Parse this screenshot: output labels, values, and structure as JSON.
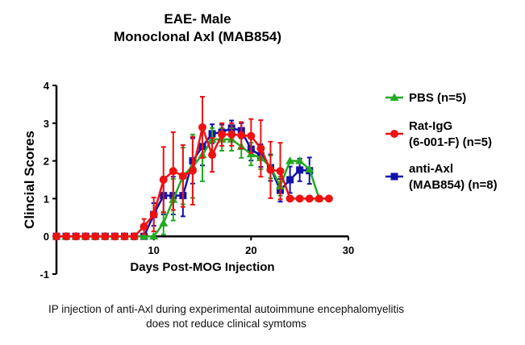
{
  "chart_data": {
    "type": "line",
    "title": "EAE- Male",
    "subtitle": "Monoclonal  Axl  (MAB854)",
    "xlabel": "Days Post-MOG Injection",
    "ylabel": "Clincial  Scores",
    "xlim": [
      0,
      30
    ],
    "ylim": [
      -1,
      4
    ],
    "xticks": [
      10,
      20,
      30
    ],
    "yticks": [
      -1,
      0,
      1,
      2,
      3,
      4
    ],
    "grid": false,
    "legend_position": "right",
    "series": [
      {
        "name": "PBS (n=5)",
        "legend_lines": [
          "PBS (n=5)"
        ],
        "color": "#22aa22",
        "marker": "triangle",
        "x": [
          0,
          1,
          2,
          3,
          4,
          5,
          6,
          7,
          8,
          9,
          10,
          11,
          12,
          13,
          14,
          15,
          16,
          17,
          18,
          19,
          20,
          21,
          22,
          23,
          24,
          25,
          26,
          27
        ],
        "y": [
          0,
          0,
          0,
          0,
          0,
          0,
          0,
          0,
          0,
          0,
          0,
          0.35,
          0.97,
          1.6,
          1.86,
          2.16,
          2.57,
          2.57,
          2.57,
          2.38,
          2.18,
          2.08,
          1.84,
          1.33,
          2.0,
          2.0,
          1.78,
          1.0
        ],
        "err": [
          0,
          0,
          0,
          0,
          0,
          0,
          0,
          0,
          0,
          0,
          0,
          0.3,
          0.55,
          0.75,
          0.84,
          0.7,
          0.3,
          0.3,
          0.3,
          0.3,
          0.3,
          0.3,
          0.3,
          0.25,
          0,
          0,
          0,
          0
        ]
      },
      {
        "name": "Rat-IgG (6-001-F) (n=5)",
        "legend_lines": [
          "Rat-IgG",
          "(6-001-F)  (n=5)"
        ],
        "color": "#ee1111",
        "marker": "circle",
        "x": [
          0,
          1,
          2,
          3,
          4,
          5,
          6,
          7,
          8,
          9,
          10,
          11,
          12,
          13,
          14,
          15,
          16,
          17,
          18,
          19,
          20,
          21,
          22,
          23,
          24,
          25,
          26,
          27,
          28
        ],
        "y": [
          0,
          0,
          0,
          0,
          0,
          0,
          0,
          0,
          0,
          0.26,
          0.58,
          1.5,
          1.73,
          1.6,
          1.74,
          2.89,
          2.16,
          2.7,
          2.7,
          2.68,
          2.66,
          2.33,
          1.76,
          1.73,
          1.0,
          1.0,
          1.0,
          1.0,
          1.0
        ],
        "err": [
          0,
          0,
          0,
          0,
          0,
          0,
          0,
          0,
          0,
          0.2,
          0.45,
          0.87,
          1.03,
          0.82,
          0.9,
          0.81,
          0.45,
          0.3,
          0.3,
          0.35,
          0.45,
          0.75,
          0.75,
          0.75,
          0,
          0,
          0,
          0,
          0
        ]
      },
      {
        "name": "anti-Axl (MAB854) (n=8)",
        "legend_lines": [
          "anti-Axl",
          "(MAB854)  (n=8)"
        ],
        "color": "#1111aa",
        "marker": "square",
        "x": [
          0,
          1,
          2,
          3,
          4,
          5,
          6,
          7,
          8,
          9,
          10,
          11,
          12,
          13,
          14,
          15,
          16,
          17,
          18,
          19,
          20,
          21,
          22,
          23,
          24,
          25,
          26
        ],
        "y": [
          0,
          0,
          0,
          0,
          0,
          0,
          0,
          0,
          0,
          0,
          0.58,
          1.08,
          1.08,
          1.08,
          2.0,
          2.38,
          2.72,
          2.76,
          2.87,
          2.8,
          2.31,
          2.14,
          1.82,
          1.22,
          1.5,
          1.76,
          1.74
        ],
        "err": [
          0,
          0,
          0,
          0,
          0,
          0,
          0,
          0,
          0,
          0,
          0.3,
          0.5,
          0.5,
          0.55,
          0.6,
          0.5,
          0.25,
          0.2,
          0.2,
          0.2,
          0.3,
          0.3,
          0.35,
          0.3,
          0.35,
          0.3,
          0.35
        ]
      }
    ]
  },
  "caption": {
    "line1": "IP injection of anti-Axl during experimental autoimmune encephalomyelitis",
    "line2": "does not reduce clinical symtoms"
  }
}
